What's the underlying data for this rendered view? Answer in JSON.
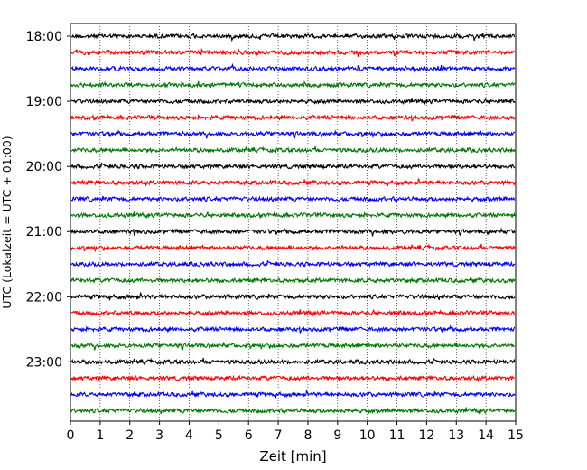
{
  "chart_data": {
    "type": "line",
    "title": "",
    "xlabel": "Zeit  [min]",
    "ylabel": "UTC (Lokalzeit = UTC + 01:00)",
    "xlim": [
      0,
      15
    ],
    "x_ticks": [
      "0",
      "1",
      "2",
      "3",
      "4",
      "5",
      "6",
      "7",
      "8",
      "9",
      "10",
      "11",
      "12",
      "13",
      "14",
      "15"
    ],
    "y_ticks": [
      "18:00",
      "19:00",
      "20:00",
      "21:00",
      "22:00",
      "23:00"
    ],
    "grid": "vertical-dotted",
    "trace_interval_minutes": 15,
    "trace_count": 24,
    "trace_colors": [
      "#000000",
      "#ff0000",
      "#0000ff",
      "#007700"
    ]
  }
}
